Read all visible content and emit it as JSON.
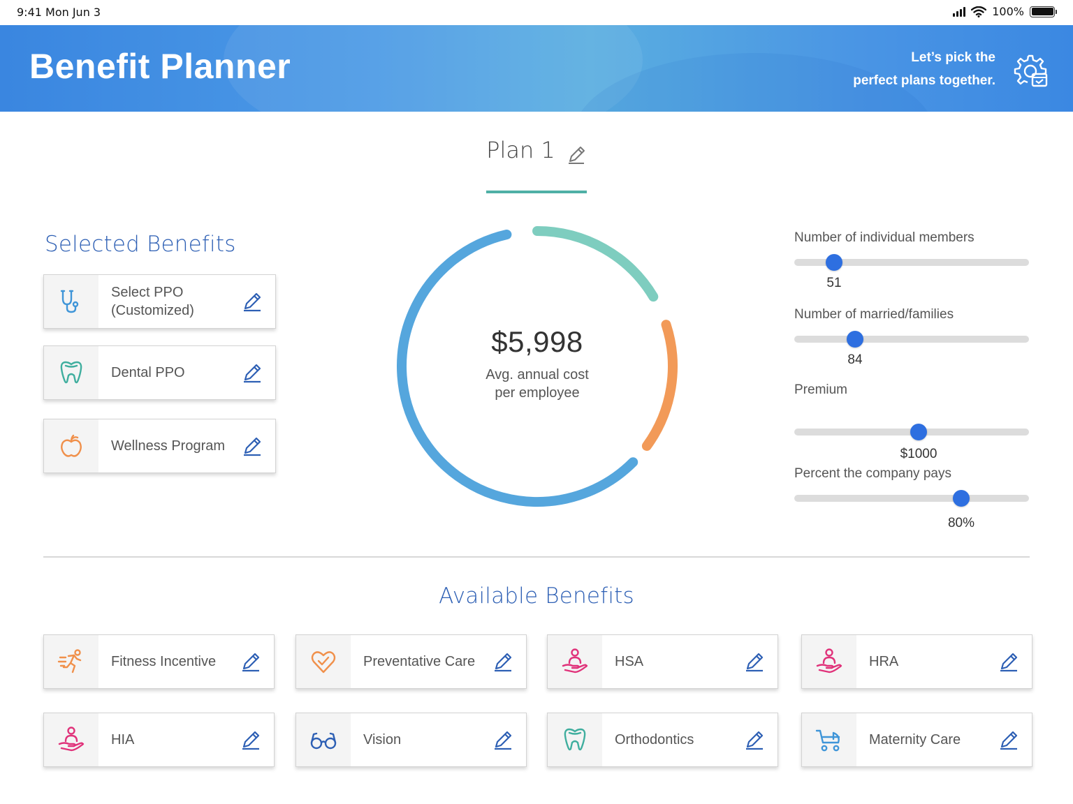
{
  "status_bar": {
    "time": "9:41  Mon Jun 3",
    "battery": "100%"
  },
  "header": {
    "title": "Benefit Planner",
    "tagline_line1": "Let’s pick the",
    "tagline_line2": "perfect plans together."
  },
  "plan": {
    "title": "Plan 1"
  },
  "selected": {
    "title": "Selected Benefits",
    "items": [
      {
        "label_line1": "Select PPO",
        "label_line2": "(Customized)",
        "icon": "stethoscope-icon",
        "color": "#3f95d8"
      },
      {
        "label_line1": "Dental PPO",
        "label_line2": "",
        "icon": "tooth-icon",
        "color": "#3fae9e"
      },
      {
        "label_line1": "Wellness Program",
        "label_line2": "",
        "icon": "apple-icon",
        "color": "#f0904b"
      }
    ]
  },
  "cost": {
    "amount": "$5,998",
    "caption_line1": "Avg. annual cost",
    "caption_line2": "per employee",
    "segment_colors": {
      "teal": "#7ecdbf",
      "orange": "#f29a58",
      "blue": "#55a6dd"
    }
  },
  "sliders": [
    {
      "label": "Number of individual members",
      "value": "51",
      "fraction": 0.17
    },
    {
      "label": "Number of married/families",
      "value": "84",
      "fraction": 0.26
    },
    {
      "label": "Premium",
      "value": "$1000",
      "fraction": 0.53
    },
    {
      "label": "Percent the company pays",
      "value": "80%",
      "fraction": 0.71
    }
  ],
  "available": {
    "title": "Available Benefits",
    "items": [
      {
        "label": "Fitness Incentive",
        "icon": "runner-icon",
        "color": "#f0904b"
      },
      {
        "label": "Preventative Care",
        "icon": "heart-check-icon",
        "color": "#f0904b"
      },
      {
        "label": "HSA",
        "icon": "hand-person-icon",
        "color": "#e0327a"
      },
      {
        "label": "HRA",
        "icon": "hand-person-icon",
        "color": "#e0327a"
      },
      {
        "label": "HIA",
        "icon": "hand-person-icon",
        "color": "#e0327a"
      },
      {
        "label": "Vision",
        "icon": "glasses-icon",
        "color": "#2d5fb4"
      },
      {
        "label": "Orthodontics",
        "icon": "tooth-icon",
        "color": "#3fae9e"
      },
      {
        "label": "Maternity Care",
        "icon": "stroller-icon",
        "color": "#3f95d8"
      }
    ]
  },
  "colors": {
    "accent_blue": "#2d5fb4",
    "slider_thumb": "#2e6fe0",
    "plan_underline": "#4fb0a6"
  }
}
